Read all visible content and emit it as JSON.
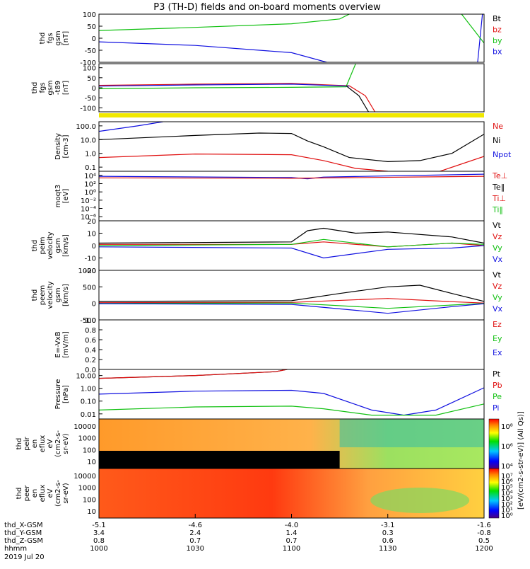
{
  "title": "P3 (TH-D) fields and on-board moments overview",
  "colors": {
    "black": "#000000",
    "red": "#e01010",
    "green": "#10c010",
    "blue": "#1010e0",
    "yellow": "#f0e800",
    "ui_background": "#ffffff"
  },
  "chart_data": [
    {
      "type": "line",
      "id": "fgs_gsm",
      "ylabel": [
        "thd",
        "fgs",
        "gsm",
        "[nT]"
      ],
      "ylim": [
        -100,
        100
      ],
      "yticks": [
        "100",
        "50",
        "0",
        "-50",
        "-100"
      ],
      "legend": [
        {
          "text": "Bt",
          "color": "#000000"
        },
        {
          "text": "bz",
          "color": "#e01010"
        },
        {
          "text": "by",
          "color": "#10c010"
        },
        {
          "text": "bx",
          "color": "#1010e0"
        }
      ],
      "series": [
        {
          "name": "by",
          "color": "#10c010",
          "x": [
            1000,
            1030,
            1100,
            1115,
            1118
          ],
          "y": [
            32,
            45,
            60,
            80,
            100
          ]
        },
        {
          "name": "bx",
          "color": "#1010e0",
          "x": [
            1000,
            1030,
            1100,
            1111
          ],
          "y": [
            -15,
            -30,
            -60,
            -100
          ]
        },
        {
          "name": "bx",
          "color": "#1010e0",
          "x": [
            1158,
            1159.5
          ],
          "y": [
            -100,
            100
          ]
        },
        {
          "name": "by",
          "color": "#10c010",
          "x": [
            1153,
            1160,
            1166,
            1170
          ],
          "y": [
            100,
            -20,
            -100,
            90
          ]
        }
      ]
    },
    {
      "type": "line",
      "id": "fgs_gsm_t89",
      "ylabel": [
        "thd",
        "fgs",
        "gsm",
        "-t89",
        "[nT]"
      ],
      "ylim": [
        -120,
        120
      ],
      "yticks": [
        "100",
        "50",
        "0",
        "-50",
        "-100"
      ],
      "series": [
        {
          "name": "bz",
          "color": "#e01010",
          "x": [
            1000,
            1030,
            1100,
            1118,
            1123,
            1126
          ],
          "y": [
            12,
            18,
            22,
            10,
            -40,
            -120
          ]
        },
        {
          "name": "bx",
          "color": "#1010e0",
          "x": [
            1000,
            1030,
            1100,
            1118
          ],
          "y": [
            8,
            14,
            18,
            8
          ]
        },
        {
          "name": "by",
          "color": "#10c010",
          "x": [
            1000,
            1030,
            1100,
            1117,
            1120
          ],
          "y": [
            -5,
            0,
            2,
            5,
            120
          ]
        },
        {
          "name": "Bt",
          "color": "#000000",
          "x": [
            1117,
            1121,
            1124
          ],
          "y": [
            10,
            -40,
            -120
          ]
        },
        {
          "name": "bz",
          "color": "#e01010",
          "x": [
            1163,
            1166,
            1169
          ],
          "y": [
            -120,
            30,
            -120
          ]
        },
        {
          "name": "by",
          "color": "#10c010",
          "x": [
            1166,
            1170
          ],
          "y": [
            -120,
            120
          ]
        }
      ]
    },
    {
      "type": "line",
      "id": "density",
      "log": true,
      "ylabel": [
        "Density",
        "[cm-3]"
      ],
      "ylim": [
        0.05,
        200
      ],
      "yticks": [
        "100.0",
        "10.0",
        "1.0",
        "0.1"
      ],
      "legend": [
        {
          "text": "Ne",
          "color": "#e01010"
        },
        {
          "text": "Ni",
          "color": "#000000"
        },
        {
          "text": "Npot",
          "color": "#1010e0"
        }
      ],
      "series": [
        {
          "name": "Ni",
          "color": "#000000",
          "x": [
            1000,
            1030,
            1050,
            1100,
            1105,
            1110,
            1118,
            1130,
            1140,
            1150,
            1200
          ],
          "y": [
            10,
            20,
            30,
            28,
            8,
            3,
            0.5,
            0.25,
            0.3,
            1.0,
            25
          ]
        },
        {
          "name": "Ne",
          "color": "#e01010",
          "x": [
            1000,
            1030,
            1100,
            1110,
            1120,
            1130,
            1145,
            1200
          ],
          "y": [
            0.5,
            0.9,
            0.8,
            0.3,
            0.08,
            0.05,
            0.04,
            0.6
          ]
        },
        {
          "name": "Npot",
          "color": "#1010e0",
          "x": [
            1000,
            1012,
            1020
          ],
          "y": [
            40,
            100,
            200
          ]
        }
      ]
    },
    {
      "type": "line",
      "id": "temperature",
      "log": true,
      "ylabel": [
        "moqt3",
        "[eV]"
      ],
      "ylim": [
        1e-07,
        100000
      ],
      "yticks": [
        "10⁴",
        "10²",
        "10⁰",
        "10⁻²",
        "10⁻⁴",
        "10⁻⁶"
      ],
      "legend": [
        {
          "text": "Te⊥",
          "color": "#e01010"
        },
        {
          "text": "Te‖",
          "color": "#000000"
        },
        {
          "text": "Ti⊥",
          "color": "#e01010"
        },
        {
          "text": "Ti‖",
          "color": "#10c010"
        }
      ],
      "series": [
        {
          "name": "Ti",
          "color": "#1010e0",
          "x": [
            1000,
            1100,
            1105,
            1110,
            1200
          ],
          "y": [
            6000,
            3000,
            1500,
            4000,
            20000
          ]
        },
        {
          "name": "Te",
          "color": "#e01010",
          "x": [
            1000,
            1100,
            1200
          ],
          "y": [
            2500,
            2000,
            6000
          ]
        }
      ]
    },
    {
      "type": "line",
      "id": "peim_velocity",
      "ylabel": [
        "thd",
        "peim",
        "velocity",
        "gsm",
        "[km/s]"
      ],
      "ylim": [
        -20,
        20
      ],
      "yticks": [
        "20",
        "10",
        "0",
        "-10",
        "-20"
      ],
      "legend": [
        {
          "text": "Vt",
          "color": "#000000"
        },
        {
          "text": "Vz",
          "color": "#e01010"
        },
        {
          "text": "Vy",
          "color": "#10c010"
        },
        {
          "text": "Vx",
          "color": "#1010e0"
        }
      ],
      "series": [
        {
          "name": "Vt",
          "color": "#000000",
          "x": [
            1000,
            1100,
            1105,
            1110,
            1120,
            1130,
            1150,
            1200
          ],
          "y": [
            2,
            3,
            12,
            14,
            10,
            11,
            7,
            2
          ]
        },
        {
          "name": "Vz",
          "color": "#e01010",
          "x": [
            1000,
            1100,
            1110,
            1130,
            1150,
            1200
          ],
          "y": [
            1,
            1,
            3,
            -1,
            2,
            0
          ]
        },
        {
          "name": "Vy",
          "color": "#10c010",
          "x": [
            1000,
            1100,
            1110,
            1130,
            1150,
            1200
          ],
          "y": [
            0,
            1,
            5,
            -1,
            2,
            1
          ]
        },
        {
          "name": "Vx",
          "color": "#1010e0",
          "x": [
            1000,
            1100,
            1110,
            1130,
            1150,
            1200
          ],
          "y": [
            -1,
            -2,
            -10,
            -3,
            -2,
            0
          ]
        }
      ]
    },
    {
      "type": "line",
      "id": "peem_velocity",
      "ylabel": [
        "thd",
        "peem",
        "velocity",
        "gsm",
        "[km/s]"
      ],
      "ylim": [
        -500,
        1000
      ],
      "yticks": [
        "1000",
        "500",
        "0",
        "-500"
      ],
      "legend": [
        {
          "text": "Vt",
          "color": "#000000"
        },
        {
          "text": "Vz",
          "color": "#e01010"
        },
        {
          "text": "Vy",
          "color": "#10c010"
        },
        {
          "text": "Vx",
          "color": "#1010e0"
        }
      ],
      "series": [
        {
          "name": "Vt",
          "color": "#000000",
          "x": [
            1000,
            1100,
            1115,
            1130,
            1140,
            1150,
            1200
          ],
          "y": [
            60,
            80,
            300,
            500,
            550,
            300,
            60
          ]
        },
        {
          "name": "Vz",
          "color": "#e01010",
          "x": [
            1000,
            1100,
            1130,
            1150,
            1200
          ],
          "y": [
            20,
            30,
            150,
            50,
            10
          ]
        },
        {
          "name": "Vy",
          "color": "#10c010",
          "x": [
            1000,
            1100,
            1130,
            1150,
            1200
          ],
          "y": [
            0,
            10,
            -150,
            -50,
            0
          ]
        },
        {
          "name": "Vx",
          "color": "#1010e0",
          "x": [
            1000,
            1100,
            1130,
            1150,
            1200
          ],
          "y": [
            -10,
            -30,
            -300,
            -100,
            -10
          ]
        }
      ]
    },
    {
      "type": "line",
      "id": "efield",
      "ylabel": [
        "E=-VxB",
        "[mV/m]"
      ],
      "ylim": [
        0.0,
        1.0
      ],
      "yticks": [
        "1.0",
        "0.8",
        "0.6",
        "0.4",
        "0.2",
        "0.0"
      ],
      "legend": [
        {
          "text": "Ez",
          "color": "#e01010"
        },
        {
          "text": "Ey",
          "color": "#10c010"
        },
        {
          "text": "Ex",
          "color": "#1010e0"
        }
      ],
      "series": []
    },
    {
      "type": "line",
      "id": "pressure",
      "log": true,
      "ylabel": [
        "Pressure",
        "[nPa]"
      ],
      "ylim": [
        0.004,
        30
      ],
      "yticks": [
        "10.00",
        "1.00",
        "0.10",
        "0.01"
      ],
      "legend": [
        {
          "text": "Pt",
          "color": "#000000"
        },
        {
          "text": "Pb",
          "color": "#e01010"
        },
        {
          "text": "Pe",
          "color": "#10c010"
        },
        {
          "text": "Pi",
          "color": "#1010e0"
        }
      ],
      "series": [
        {
          "name": "Pt",
          "color": "#000000",
          "x": [
            1000,
            1030,
            1055,
            1100
          ],
          "y": [
            6,
            10,
            20,
            35
          ]
        },
        {
          "name": "Pb",
          "color": "#e01010",
          "x": [
            1000,
            1030,
            1055,
            1100
          ],
          "y": [
            6,
            10,
            20,
            35
          ]
        },
        {
          "name": "Pi",
          "color": "#1010e0",
          "x": [
            1000,
            1030,
            1100,
            1110,
            1125,
            1135,
            1145,
            1200
          ],
          "y": [
            0.35,
            0.6,
            0.7,
            0.4,
            0.02,
            0.008,
            0.02,
            1.1
          ]
        },
        {
          "name": "Pe",
          "color": "#10c010",
          "x": [
            1000,
            1030,
            1100,
            1110,
            1125,
            1145,
            1200
          ],
          "y": [
            0.02,
            0.035,
            0.04,
            0.025,
            0.008,
            0.008,
            0.06
          ]
        }
      ]
    },
    {
      "type": "heatmap",
      "id": "peir_en_eflux",
      "ylabel": [
        "thd",
        "peir",
        "en",
        "eflux",
        "eV",
        "(cm2-s-",
        "sr-eV)"
      ],
      "yticks": [
        "10000",
        "1000",
        "100",
        "10"
      ],
      "colorbar": [
        "10⁸",
        "10⁶",
        "10⁴"
      ],
      "colorbar_label": "[eV/(cm2-s-str-eV)] (All Qs)]"
    },
    {
      "type": "heatmap",
      "id": "peer_en_eflux",
      "ylabel": [
        "thd",
        "peer",
        "en",
        "eflux",
        "eV",
        "(cm2-s-",
        "sr-eV)"
      ],
      "yticks": [
        "10000",
        "1000",
        "100",
        "10"
      ],
      "colorbar": [
        "10⁷",
        "10⁶",
        "10⁵",
        "10⁴",
        "10³",
        "10²",
        "10¹",
        "10⁰"
      ]
    }
  ],
  "x_axis": {
    "rows": [
      {
        "label": "thd_X-GSM",
        "values": [
          "-5.1",
          "-4.6",
          "-4.0",
          "-3.1",
          "-1.6"
        ]
      },
      {
        "label": "thd_Y-GSM",
        "values": [
          "3.4",
          "2.4",
          "1.4",
          "0.3",
          "-0.8"
        ]
      },
      {
        "label": "thd_Z-GSM",
        "values": [
          "0.8",
          "0.7",
          "0.7",
          "0.6",
          "0.5"
        ]
      },
      {
        "label": "hhmm",
        "values": [
          "1000",
          "1030",
          "1100",
          "1130",
          "1200"
        ]
      }
    ],
    "date": "2019 Jul 20"
  }
}
